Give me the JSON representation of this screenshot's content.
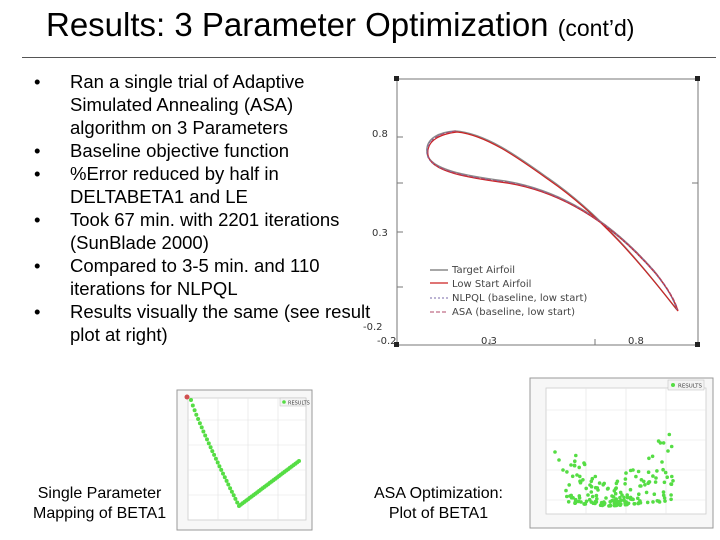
{
  "slide": {
    "title_main": "Results: 3 Parameter Optimization",
    "title_suffix": "(cont’d)"
  },
  "bullets": [
    "Ran a single trial of Adaptive Simulated Annealing (ASA) algorithm on 3 Parameters",
    "Baseline objective function",
    "%Error reduced by half in DELTABETA1 and LE",
    "Took 67 min. with 2201 iterations (SunBlade 2000)",
    "Compared to 3-5 min. and 110 iterations for NLPQL",
    "Results visually the same (see result plot at right)"
  ],
  "airfoil_plot": {
    "y_ticks": [
      "0.8",
      "0.3",
      "-0.2"
    ],
    "x_ticks": [
      "-0.2",
      "0.3",
      "0.8"
    ],
    "legend": [
      "Target Airfoil",
      "Low Start Airfoil",
      "NLPQL (baseline, low start)",
      "ASA (baseline, low start)"
    ],
    "colors": {
      "target": "#8a8a8a",
      "low_start": "#cc2222",
      "nlpql": "#7a6aa8",
      "asa": "#b04a6a"
    }
  },
  "left_plot": {
    "legend": "RESULTS",
    "point_color": "#55dd44"
  },
  "right_plot": {
    "legend": "RESULTS",
    "point_color": "#55dd44"
  },
  "captions": {
    "left": [
      "Single Parameter",
      "Mapping of BETA1"
    ],
    "right": [
      "ASA Optimization:",
      "Plot of BETA1"
    ]
  }
}
